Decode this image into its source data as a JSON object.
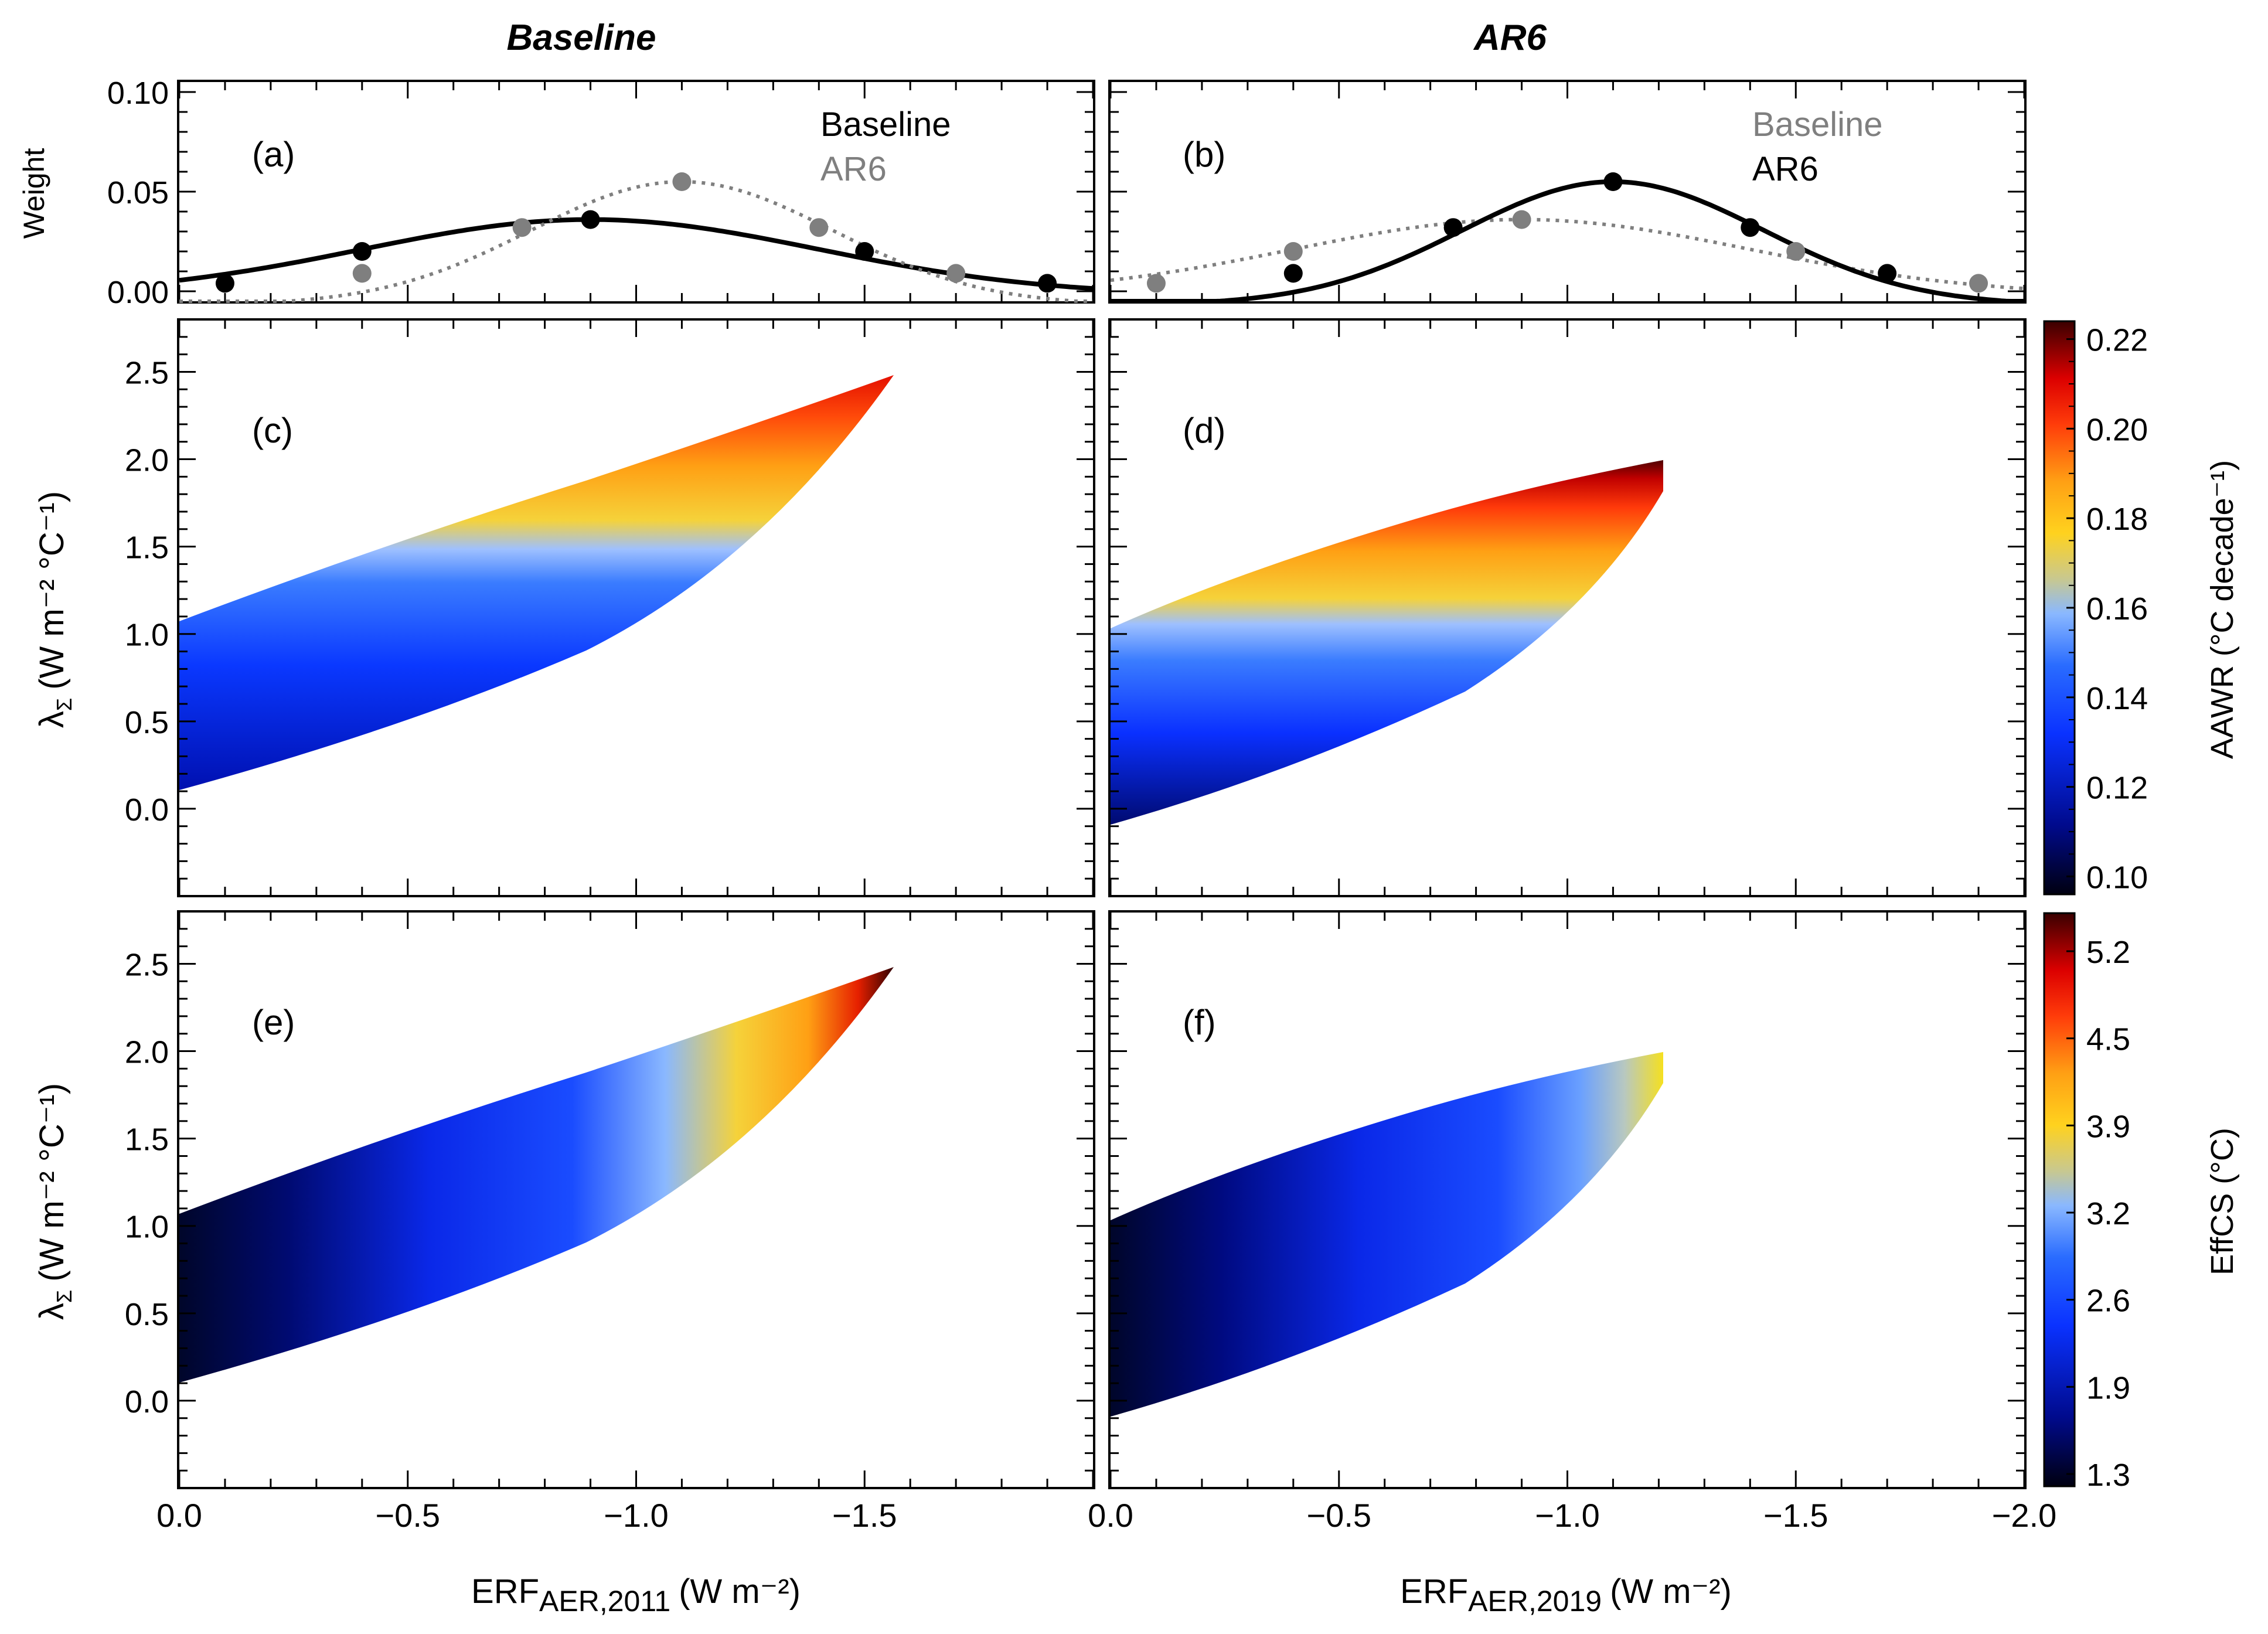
{
  "columns": {
    "left_title": "Baseline",
    "right_title": "AR6"
  },
  "chart_data": [
    {
      "id": "a",
      "type": "line",
      "panel_label": "(a)",
      "ylabel": "Weight",
      "x_range": [
        0.0,
        -2.0
      ],
      "ylim": [
        -0.005,
        0.105
      ],
      "yticks": [
        "0.00",
        "0.05",
        "0.10"
      ],
      "legend": [
        "Baseline",
        "AR6"
      ],
      "series": [
        {
          "name": "Baseline",
          "color": "#000000",
          "style": "solid",
          "x": [
            -0.1,
            -0.4,
            -0.9,
            -1.5,
            -1.9
          ],
          "y": [
            0.004,
            0.02,
            0.036,
            0.02,
            0.004
          ]
        },
        {
          "name": "AR6",
          "color": "#7f7f7f",
          "style": "dotted",
          "x": [
            -0.4,
            -0.75,
            -1.1,
            -1.4,
            -1.7
          ],
          "y": [
            0.009,
            0.032,
            0.055,
            0.032,
            0.009
          ]
        }
      ]
    },
    {
      "id": "b",
      "type": "line",
      "panel_label": "(b)",
      "ylabel": "",
      "x_range": [
        0.0,
        -2.0
      ],
      "ylim": [
        -0.005,
        0.105
      ],
      "legend": [
        "Baseline",
        "AR6"
      ],
      "series": [
        {
          "name": "Baseline",
          "color": "#7f7f7f",
          "style": "dotted",
          "x": [
            -0.1,
            -0.4,
            -0.9,
            -1.5,
            -1.9
          ],
          "y": [
            0.004,
            0.02,
            0.036,
            0.02,
            0.004
          ]
        },
        {
          "name": "AR6",
          "color": "#000000",
          "style": "solid",
          "x": [
            -0.4,
            -0.75,
            -1.1,
            -1.4,
            -1.7
          ],
          "y": [
            0.009,
            0.032,
            0.055,
            0.032,
            0.009
          ]
        }
      ]
    },
    {
      "id": "c",
      "type": "scatter",
      "panel_label": "(c)",
      "ylabel": "λΣ (W m⁻² °C⁻¹)",
      "ylim": [
        -0.5,
        2.8
      ],
      "yticks": [
        "0.0",
        "0.5",
        "1.0",
        "1.5",
        "2.0",
        "2.5"
      ],
      "x_max_data": -1.55,
      "lower_edge": [
        0.08,
        2.49
      ],
      "upper_edge": [
        1.1,
        2.49
      ],
      "colorbar": "AAWR"
    },
    {
      "id": "d",
      "type": "scatter",
      "panel_label": "(d)",
      "ylabel": "",
      "ylim": [
        -0.5,
        2.8
      ],
      "x_max_data": -1.2,
      "lower_edge": [
        -0.08,
        1.96
      ],
      "upper_edge": [
        1.0,
        1.96
      ],
      "colorbar": "AAWR"
    },
    {
      "id": "e",
      "type": "scatter",
      "panel_label": "(e)",
      "ylabel": "λΣ (W m⁻² °C⁻¹)",
      "ylim": [
        -0.5,
        2.8
      ],
      "yticks": [
        "0.0",
        "0.5",
        "1.0",
        "1.5",
        "2.0",
        "2.5"
      ],
      "x_max_data": -1.55,
      "lower_edge": [
        0.08,
        2.49
      ],
      "upper_edge": [
        1.1,
        2.49
      ],
      "xlabel": "ERFAER,2011 (W m⁻²)",
      "xticks": [
        "0.0",
        "−0.5",
        "−1.0",
        "−1.5"
      ],
      "colorbar": "EffCS"
    },
    {
      "id": "f",
      "type": "scatter",
      "panel_label": "(f)",
      "ylabel": "",
      "ylim": [
        -0.5,
        2.8
      ],
      "x_max_data": -1.2,
      "lower_edge": [
        -0.08,
        1.96
      ],
      "upper_edge": [
        1.0,
        1.96
      ],
      "xlabel": "ERFAER,2019 (W m⁻²)",
      "xticks": [
        "0.0",
        "−0.5",
        "−1.0",
        "−1.5",
        "−2.0"
      ],
      "colorbar": "EffCS"
    }
  ],
  "colorbars": {
    "aawr": {
      "title": "AAWR (°C decade⁻¹)",
      "ticks": [
        "0.22",
        "0.20",
        "0.18",
        "0.16",
        "0.14",
        "0.12",
        "0.10"
      ],
      "range": [
        0.096,
        0.224
      ]
    },
    "effcs": {
      "title": "EffCS (°C)",
      "ticks": [
        "5.2",
        "4.5",
        "3.9",
        "3.2",
        "2.6",
        "1.9",
        "1.3"
      ]
    }
  },
  "axis_text": {
    "xlabel_left_base": "ERF",
    "xlabel_left_sub": "AER,2011",
    "xlabel_left_unit": "(W m⁻²)",
    "xlabel_right_base": "ERF",
    "xlabel_right_sub": "AER,2019",
    "xlabel_right_unit": "(W m⁻²)",
    "ylabel_base": "λ",
    "ylabel_sub": "Σ",
    "ylabel_unit": "(W m⁻² °C⁻¹)",
    "aawr_title": "AAWR (°C decade⁻¹)",
    "effcs_title": "EffCS (°C)"
  }
}
